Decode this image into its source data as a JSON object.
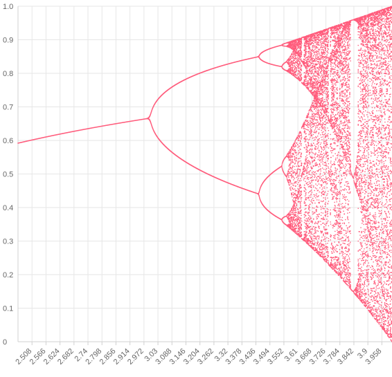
{
  "chart_data": {
    "type": "scatter",
    "title": "",
    "xlabel": "",
    "ylabel": "",
    "xlim": [
      2.45,
      4.0
    ],
    "ylim": [
      0,
      1
    ],
    "grid": true,
    "legend": "none",
    "x_ticks": [
      "2.508",
      "2.566",
      "2.624",
      "2.682",
      "2.74",
      "2.798",
      "2.856",
      "2.914",
      "2.972",
      "3.03",
      "3.088",
      "3.146",
      "3.204",
      "3.262",
      "3.32",
      "3.378",
      "3.436",
      "3.494",
      "3.552",
      "3.61",
      "3.668",
      "3.726",
      "3.784",
      "3.842",
      "3.9",
      "3.958"
    ],
    "y_ticks": [
      "0",
      "0.1",
      "0.2",
      "0.3",
      "0.4",
      "0.5",
      "0.6",
      "0.7",
      "0.8",
      "0.9",
      "1.0"
    ],
    "series": [
      {
        "color": "#ff5c7c",
        "generator": "logistic-map",
        "r_start": 2.45,
        "r_end": 4.0,
        "r_step": 0.001,
        "x0": 0.5,
        "warmup_iterations": 300,
        "sample_iterations": 30
      }
    ]
  }
}
